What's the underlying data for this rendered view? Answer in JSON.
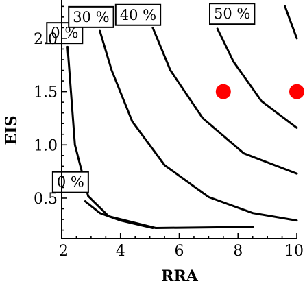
{
  "chart_data": {
    "type": "line",
    "subtype": "contour",
    "title": "",
    "xlabel": "RRA",
    "ylabel": "EIS",
    "xlim": [
      2,
      10
    ],
    "ylim": [
      0.12,
      2.36
    ],
    "x_ticks": [
      2,
      4,
      6,
      8,
      10
    ],
    "y_ticks": [
      0.5,
      1.0,
      1.5,
      2.0
    ],
    "x_tick_labels": [
      "2",
      "4",
      "6",
      "8",
      "10"
    ],
    "y_tick_labels": [
      "0.5",
      "1.0",
      "1.5",
      "2.0"
    ],
    "grid": false,
    "series": [
      {
        "name": "0 %",
        "label_text": "0 %",
        "label_at": [
          2.3,
          0.65
        ],
        "points": [
          [
            2.8,
            0.47
          ],
          [
            3.3,
            0.36
          ],
          [
            4.0,
            0.29
          ],
          [
            5.1,
            0.22
          ]
        ]
      },
      {
        "name": "",
        "label_text": "0 %",
        "label_at": [
          2.1,
          2.05
        ],
        "points": [
          [
            2.2,
            1.92
          ],
          [
            2.45,
            1.0
          ],
          [
            2.9,
            0.52
          ],
          [
            3.6,
            0.33
          ],
          [
            5.2,
            0.22
          ],
          [
            8.5,
            0.23
          ]
        ]
      },
      {
        "name": "30 %",
        "label_text": "30 %",
        "label_at": [
          3.0,
          2.2
        ],
        "points": [
          [
            3.3,
            2.07
          ],
          [
            3.7,
            1.7
          ],
          [
            4.4,
            1.22
          ],
          [
            5.5,
            0.81
          ],
          [
            7.0,
            0.51
          ],
          [
            8.5,
            0.36
          ],
          [
            10.0,
            0.29
          ]
        ]
      },
      {
        "name": "40 %",
        "label_text": "40 %",
        "label_at": [
          4.6,
          2.22
        ],
        "points": [
          [
            5.1,
            2.1
          ],
          [
            5.7,
            1.7
          ],
          [
            6.8,
            1.25
          ],
          [
            8.2,
            0.92
          ],
          [
            10.0,
            0.73
          ]
        ]
      },
      {
        "name": "50 %",
        "label_text": "50 %",
        "label_at": [
          7.8,
          2.23
        ],
        "points": [
          [
            7.3,
            2.09
          ],
          [
            7.85,
            1.78
          ],
          [
            8.8,
            1.41
          ],
          [
            10.0,
            1.16
          ]
        ]
      },
      {
        "name": "",
        "label_text": "",
        "label_at": null,
        "points": [
          [
            9.6,
            2.3
          ],
          [
            10.0,
            2.0
          ]
        ]
      }
    ],
    "markers": [
      {
        "x": 7.5,
        "y": 1.5,
        "color": "#ff0000"
      },
      {
        "x": 10.0,
        "y": 1.5,
        "color": "#ff0000"
      }
    ],
    "line_color": "#000000"
  }
}
